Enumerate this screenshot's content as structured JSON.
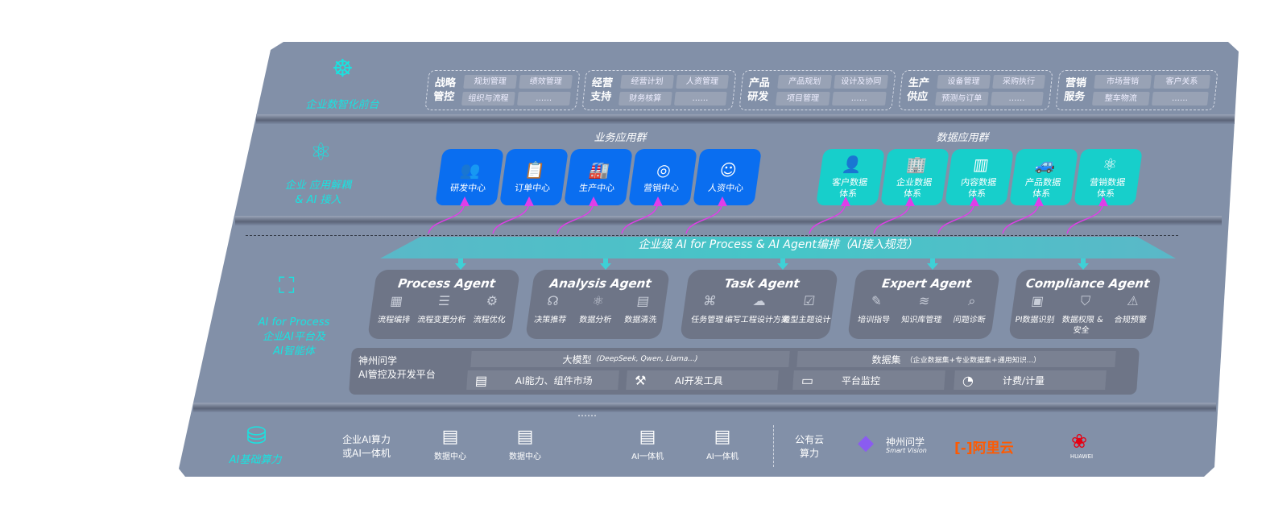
{
  "layers": {
    "front": {
      "label": "企业数智化前台",
      "icon": "brain-icon"
    },
    "apps": {
      "label": "企业 应用解耦\n& AI 接入",
      "icon": "molecule-icon"
    },
    "ai": {
      "label_en": "AI for Process",
      "label_cn": "企业AI平台及\nAI智能体",
      "icon": "face-scan-icon"
    },
    "infra": {
      "label": "AI基础算力",
      "icon": "database-icon"
    }
  },
  "front_groups": [
    {
      "title": "战略\n管控",
      "items": [
        "规划管理",
        "绩效管理",
        "组织与流程",
        "……"
      ]
    },
    {
      "title": "经营\n支持",
      "items": [
        "经营计划",
        "人资管理",
        "财务核算",
        "……"
      ]
    },
    {
      "title": "产品\n研发",
      "items": [
        "产品规划",
        "设计及协同",
        "项目管理",
        "……"
      ]
    },
    {
      "title": "生产\n供应",
      "items": [
        "设备管理",
        "采购执行",
        "预测与订单",
        "……"
      ]
    },
    {
      "title": "营销\n服务",
      "items": [
        "市场营销",
        "客户关系",
        "整车物流",
        "……"
      ]
    }
  ],
  "business_apps": {
    "title": "业务应用群",
    "items": [
      {
        "label": "研发中心",
        "icon": "team-icon"
      },
      {
        "label": "订单中心",
        "icon": "clipboard-icon"
      },
      {
        "label": "生产中心",
        "icon": "factory-icon"
      },
      {
        "label": "营销中心",
        "icon": "target-icon"
      },
      {
        "label": "人资中心",
        "icon": "person-icon"
      }
    ]
  },
  "data_apps": {
    "title": "数据应用群",
    "items": [
      {
        "label": "客户数据\n体系",
        "icon": "user-icon"
      },
      {
        "label": "企业数据\n体系",
        "icon": "building-icon"
      },
      {
        "label": "内容数据\n体系",
        "icon": "books-icon"
      },
      {
        "label": "产品数据\n体系",
        "icon": "car-icon"
      },
      {
        "label": "营销数据\n体系",
        "icon": "atom-icon"
      }
    ]
  },
  "banner": "企业级 AI for Process & AI Agent编排（AI接入规范）",
  "agents": [
    {
      "name": "Process Agent",
      "features": [
        {
          "label": "流程编排",
          "icon": "flow-chart-icon"
        },
        {
          "label": "流程变更分析",
          "icon": "list-icon"
        },
        {
          "label": "流程优化",
          "icon": "optimize-icon"
        }
      ]
    },
    {
      "name": "Analysis Agent",
      "features": [
        {
          "label": "决策推荐",
          "icon": "head-icon"
        },
        {
          "label": "数据分析",
          "icon": "atom-icon"
        },
        {
          "label": "数据清洗",
          "icon": "document-icon"
        }
      ]
    },
    {
      "name": "Task Agent",
      "features": [
        {
          "label": "任务管理",
          "icon": "network-icon"
        },
        {
          "label": "编写工程设计方案",
          "icon": "cloud-icon"
        },
        {
          "label": "造型主题设计",
          "icon": "checklist-icon"
        }
      ]
    },
    {
      "name": "Expert Agent",
      "features": [
        {
          "label": "培训指导",
          "icon": "pen-icon"
        },
        {
          "label": "知识库管理",
          "icon": "layers-icon"
        },
        {
          "label": "问题诊断",
          "icon": "diagnose-icon"
        }
      ]
    },
    {
      "name": "Compliance Agent",
      "features": [
        {
          "label": "PI数据识别",
          "icon": "id-card-icon"
        },
        {
          "label": "数据权限 &\n安全",
          "icon": "shield-icon"
        },
        {
          "label": "合规预警",
          "icon": "alert-icon"
        }
      ]
    }
  ],
  "platform": {
    "title": "神州问学\nAI管控及开发平台",
    "model": "大模型",
    "model_note": "(DeepSeek, Qwen, Llama...)",
    "dataset": "数据集",
    "dataset_note": "（企业数据集+专业数据集+通用知识...）",
    "tools": [
      {
        "label": "AI能力、组件市场",
        "icon": "market-icon"
      },
      {
        "label": "AI开发工具",
        "icon": "dev-tool-icon"
      },
      {
        "label": "平台监控",
        "icon": "monitor-icon"
      },
      {
        "label": "计费/计量",
        "icon": "gauge-icon"
      }
    ]
  },
  "infra": {
    "private_label": "企业AI算力\n或AI一体机",
    "servers": [
      "数据中心",
      "数据中心",
      "……",
      "AI一体机",
      "AI一体机"
    ],
    "public_label": "公有云\n算力",
    "vendors": [
      {
        "name": "神州问学",
        "sub": "Smart Vision"
      },
      {
        "name": "阿里云"
      },
      {
        "name": "HUAWEI"
      }
    ]
  },
  "colors": {
    "panel": "#8290a8",
    "cyan": "#19e3e0",
    "blue": "#0a6ef0",
    "teal": "#17cfcb",
    "arrow": "#e03ee8",
    "aliyun": "#ff5a00",
    "huawei": "#e60012"
  }
}
